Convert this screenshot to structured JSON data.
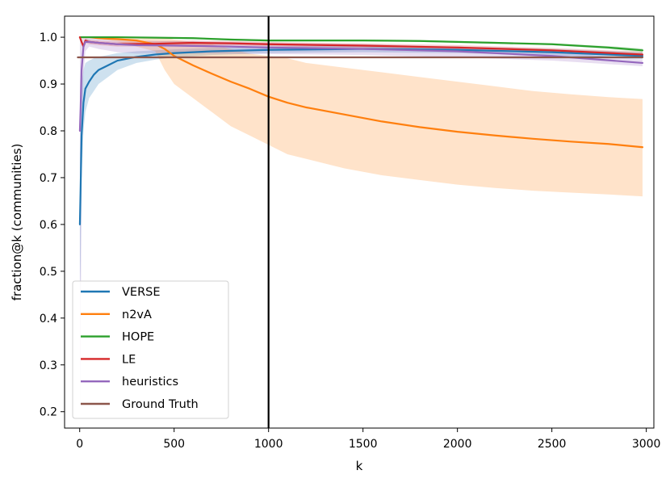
{
  "chart_data": {
    "type": "line",
    "title": "",
    "xlabel": "k",
    "ylabel": "fraction@k (communities)",
    "xlim": [
      -80,
      3040
    ],
    "ylim": [
      0.165,
      1.045
    ],
    "xticks": [
      0,
      500,
      1000,
      1500,
      2000,
      2500,
      3000
    ],
    "xtick_labels": [
      "0",
      "500",
      "1000",
      "1500",
      "2000",
      "2500",
      "3000"
    ],
    "yticks": [
      0.2,
      0.3,
      0.4,
      0.5,
      0.6,
      0.7,
      0.8,
      0.9,
      1.0
    ],
    "ytick_labels": [
      "0.2",
      "0.3",
      "0.4",
      "0.5",
      "0.6",
      "0.7",
      "0.8",
      "0.9",
      "1.0"
    ],
    "grid": false,
    "legend_position": "bottom-left",
    "vline": {
      "x": 1000,
      "color": "#000000"
    },
    "series": [
      {
        "name": "VERSE",
        "color": "#1f77b4",
        "x": [
          1,
          5,
          10,
          20,
          30,
          50,
          75,
          100,
          150,
          200,
          300,
          400,
          500,
          700,
          1000,
          1500,
          2000,
          2500,
          2980
        ],
        "y": [
          0.6,
          0.68,
          0.79,
          0.86,
          0.89,
          0.905,
          0.92,
          0.93,
          0.94,
          0.95,
          0.958,
          0.963,
          0.966,
          0.97,
          0.973,
          0.975,
          0.973,
          0.968,
          0.96
        ],
        "lower": [
          0.45,
          0.52,
          0.7,
          0.8,
          0.84,
          0.87,
          0.885,
          0.9,
          0.915,
          0.93,
          0.945,
          0.952,
          0.957,
          0.962,
          0.966,
          0.968,
          0.966,
          0.961,
          0.953
        ],
        "upper": [
          0.75,
          0.84,
          0.9,
          0.93,
          0.945,
          0.95,
          0.955,
          0.958,
          0.962,
          0.966,
          0.97,
          0.972,
          0.974,
          0.977,
          0.98,
          0.982,
          0.98,
          0.975,
          0.968
        ]
      },
      {
        "name": "n2vA",
        "color": "#ff7f0e",
        "x": [
          1,
          50,
          100,
          200,
          300,
          400,
          450,
          500,
          600,
          700,
          800,
          900,
          1000,
          1100,
          1200,
          1400,
          1600,
          1800,
          2000,
          2200,
          2400,
          2600,
          2800,
          2980
        ],
        "y": [
          1.0,
          1.0,
          0.998,
          0.996,
          0.993,
          0.985,
          0.975,
          0.96,
          0.94,
          0.922,
          0.905,
          0.89,
          0.873,
          0.86,
          0.85,
          0.835,
          0.82,
          0.808,
          0.798,
          0.79,
          0.783,
          0.777,
          0.772,
          0.765
        ],
        "lower": [
          1.0,
          1.0,
          0.996,
          0.99,
          0.98,
          0.97,
          0.93,
          0.9,
          0.87,
          0.84,
          0.81,
          0.79,
          0.77,
          0.75,
          0.74,
          0.72,
          0.705,
          0.695,
          0.685,
          0.678,
          0.672,
          0.668,
          0.664,
          0.66
        ],
        "upper": [
          1.0,
          1.0,
          1.0,
          1.0,
          1.0,
          1.0,
          1.0,
          0.995,
          0.99,
          0.985,
          0.975,
          0.965,
          0.96,
          0.955,
          0.945,
          0.935,
          0.925,
          0.915,
          0.905,
          0.895,
          0.885,
          0.878,
          0.872,
          0.868
        ]
      },
      {
        "name": "HOPE",
        "color": "#2ca02c",
        "x": [
          1,
          100,
          200,
          400,
          600,
          800,
          1000,
          1200,
          1500,
          1800,
          2000,
          2200,
          2500,
          2800,
          2980
        ],
        "y": [
          1.0,
          1.0,
          1.0,
          0.999,
          0.998,
          0.995,
          0.993,
          0.993,
          0.993,
          0.992,
          0.99,
          0.988,
          0.985,
          0.978,
          0.972
        ],
        "lower": [
          1.0,
          1.0,
          0.999,
          0.998,
          0.996,
          0.993,
          0.991,
          0.991,
          0.991,
          0.99,
          0.988,
          0.986,
          0.983,
          0.975,
          0.968
        ],
        "upper": [
          1.0,
          1.0,
          1.0,
          1.0,
          1.0,
          0.997,
          0.995,
          0.995,
          0.995,
          0.994,
          0.992,
          0.99,
          0.987,
          0.981,
          0.976
        ]
      },
      {
        "name": "LE",
        "color": "#d62728",
        "x": [
          1,
          10,
          20,
          30,
          50,
          100,
          200,
          400,
          600,
          800,
          1000,
          1500,
          2000,
          2500,
          2980
        ],
        "y": [
          1.0,
          0.99,
          0.98,
          0.993,
          0.99,
          0.988,
          0.985,
          0.986,
          0.988,
          0.987,
          0.985,
          0.982,
          0.978,
          0.972,
          0.963
        ],
        "lower": [
          1.0,
          0.985,
          0.975,
          0.988,
          0.985,
          0.983,
          0.98,
          0.981,
          0.983,
          0.982,
          0.98,
          0.977,
          0.973,
          0.967,
          0.957
        ],
        "upper": [
          1.0,
          0.995,
          0.985,
          0.998,
          0.995,
          0.993,
          0.99,
          0.991,
          0.993,
          0.992,
          0.99,
          0.987,
          0.983,
          0.977,
          0.969
        ]
      },
      {
        "name": "heuristics",
        "color": "#9467bd",
        "x": [
          1,
          5,
          10,
          20,
          30,
          50,
          100,
          200,
          300,
          500,
          800,
          1000,
          1500,
          2000,
          2500,
          2980
        ],
        "y": [
          0.8,
          0.85,
          0.93,
          0.98,
          0.99,
          0.99,
          0.988,
          0.985,
          0.983,
          0.982,
          0.98,
          0.978,
          0.975,
          0.97,
          0.96,
          0.945
        ],
        "lower": [
          0.2,
          0.3,
          0.7,
          0.92,
          0.97,
          0.98,
          0.975,
          0.968,
          0.965,
          0.966,
          0.965,
          0.964,
          0.962,
          0.957,
          0.95,
          0.938
        ],
        "upper": [
          1.0,
          1.0,
          1.0,
          1.0,
          1.0,
          1.0,
          0.996,
          0.994,
          0.993,
          0.992,
          0.99,
          0.988,
          0.985,
          0.98,
          0.97,
          0.952
        ]
      },
      {
        "name": "Ground Truth",
        "color": "#8c564b",
        "x": [
          -10,
          2980
        ],
        "y": [
          0.957,
          0.957
        ]
      }
    ]
  }
}
